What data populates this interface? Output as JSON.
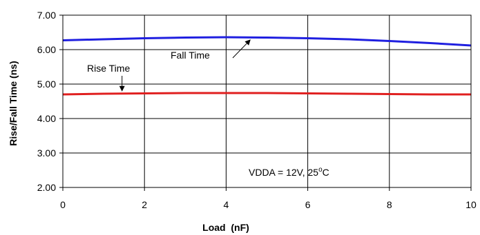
{
  "chart_data": {
    "type": "line",
    "title": "",
    "xlabel": "Load  (nF)",
    "ylabel": "Rise/Fall Time (ns)",
    "xlim": [
      0,
      10
    ],
    "ylim": [
      2.0,
      7.0
    ],
    "x_ticks": [
      "0",
      "2",
      "4",
      "6",
      "8",
      "10"
    ],
    "y_ticks": [
      "2.00",
      "3.00",
      "4.00",
      "5.00",
      "6.00",
      "7.00"
    ],
    "grid": true,
    "series": [
      {
        "name": "Fall Time",
        "color": "#1f1fe0",
        "x": [
          0,
          1,
          2,
          3,
          4,
          5,
          6,
          7,
          8,
          9,
          10
        ],
        "y": [
          6.27,
          6.3,
          6.33,
          6.35,
          6.36,
          6.35,
          6.33,
          6.3,
          6.25,
          6.19,
          6.12
        ]
      },
      {
        "name": "Rise Time",
        "color": "#e01f1f",
        "x": [
          0,
          1,
          2,
          3,
          4,
          5,
          6,
          7,
          8,
          9,
          10
        ],
        "y": [
          4.7,
          4.72,
          4.73,
          4.74,
          4.74,
          4.74,
          4.73,
          4.72,
          4.71,
          4.7,
          4.7
        ]
      }
    ],
    "annotations": [
      {
        "text": "Fall Time",
        "series": "Fall Time",
        "arrow_to_x": 4.6
      },
      {
        "text": "Rise Time",
        "series": "Rise Time",
        "arrow_to_x": 1.45
      },
      {
        "text_prefix": "VDDA = 12V, 25",
        "text_sup": "o",
        "text_suffix": "C"
      }
    ]
  }
}
